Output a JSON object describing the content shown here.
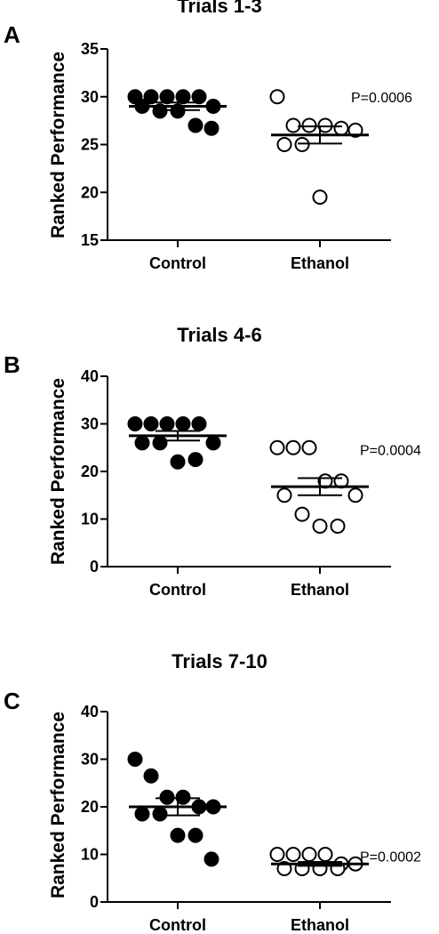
{
  "chart_data": [
    {
      "type": "scatter",
      "panel_label": "A",
      "title": "Trials 1-3",
      "ylabel": "Ranked  Performance",
      "ylim": [
        15,
        35
      ],
      "yticks": [
        "15",
        "20",
        "25",
        "30",
        "35"
      ],
      "categories": [
        "Control",
        "Ethanol"
      ],
      "p_value": "P=0.0006",
      "series": [
        {
          "values": [
            30,
            30,
            30,
            30,
            30,
            29,
            29,
            28.5,
            28.5,
            27,
            26.7
          ],
          "mean": 29.0,
          "sem": 0.4,
          "marker": "filled"
        },
        {
          "values": [
            30,
            27,
            27,
            27,
            26.7,
            26.5,
            25,
            25,
            19.5
          ],
          "mean": 26.0,
          "sem": 0.9,
          "marker": "open"
        }
      ]
    },
    {
      "type": "scatter",
      "panel_label": "B",
      "title": "Trials 4-6",
      "ylabel": "Ranked  Performance",
      "ylim": [
        0,
        40
      ],
      "yticks": [
        "0",
        "10",
        "20",
        "30",
        "40"
      ],
      "categories": [
        "Control",
        "Ethanol"
      ],
      "p_value": "P=0.0004",
      "series": [
        {
          "values": [
            30,
            30,
            30,
            30,
            30,
            26,
            26,
            26,
            22,
            22.5
          ],
          "mean": 27.5,
          "sem": 1.0,
          "marker": "filled"
        },
        {
          "values": [
            25,
            25,
            25,
            18,
            18,
            15,
            15,
            11,
            8.5,
            8.5
          ],
          "mean": 16.8,
          "sem": 1.8,
          "marker": "open"
        }
      ]
    },
    {
      "type": "scatter",
      "panel_label": "C",
      "title": "Trials 7-10",
      "ylabel": "Ranked  Performance",
      "ylim": [
        0,
        40
      ],
      "yticks": [
        "0",
        "10",
        "20",
        "30",
        "40"
      ],
      "categories": [
        "Control",
        "Ethanol"
      ],
      "p_value": "P=0.0002",
      "series": [
        {
          "values": [
            30,
            26.5,
            22,
            22,
            20,
            20,
            18.5,
            18.5,
            14,
            14,
            9
          ],
          "mean": 20.0,
          "sem": 1.8,
          "marker": "filled"
        },
        {
          "values": [
            10,
            10,
            10,
            10,
            8,
            8,
            7,
            7,
            7,
            7
          ],
          "mean": 8.0,
          "sem": 0.4,
          "marker": "open"
        }
      ]
    }
  ]
}
